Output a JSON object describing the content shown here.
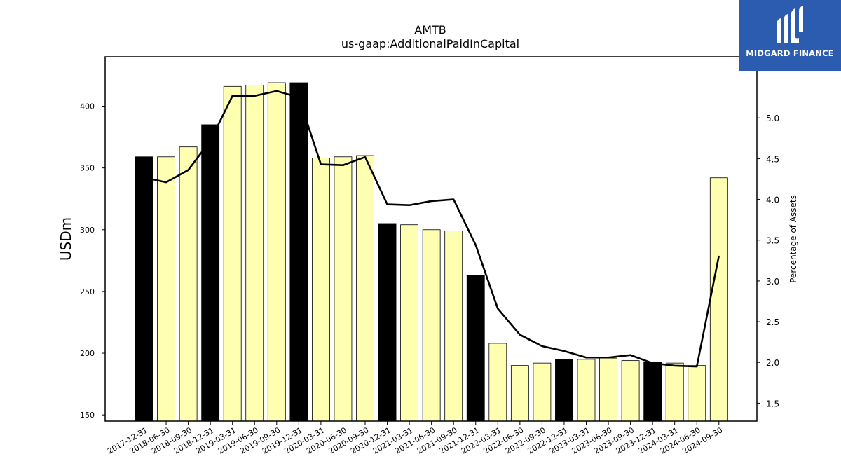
{
  "brand": {
    "name": "MIDGARD FINANCE",
    "logo_icon": "mf-logo-icon",
    "color": "#2b5caf"
  },
  "chart_data": {
    "type": "bar",
    "title": "AMTB",
    "subtitle": "us-gaap:AdditionalPaidInCapital",
    "ylabel": "USDm",
    "y2label": "Percentage of Assets",
    "ylim": [
      145,
      440
    ],
    "y2lim": [
      1.28,
      5.75
    ],
    "yticks": [
      150,
      200,
      250,
      300,
      350,
      400
    ],
    "y2ticks": [
      "1.5",
      "2.0",
      "2.5",
      "3.0",
      "3.5",
      "4.0",
      "4.5",
      "5.0"
    ],
    "categories": [
      "2017-12-31",
      "2018-06-30",
      "2018-09-30",
      "2018-12-31",
      "2019-03-31",
      "2019-06-30",
      "2019-09-30",
      "2019-12-31",
      "2020-03-31",
      "2020-06-30",
      "2020-09-30",
      "2020-12-31",
      "2021-03-31",
      "2021-06-30",
      "2021-09-30",
      "2021-12-31",
      "2022-03-31",
      "2022-06-30",
      "2022-09-30",
      "2022-12-31",
      "2023-03-31",
      "2023-06-30",
      "2023-09-30",
      "2023-12-31",
      "2024-03-31",
      "2024-06-30",
      "2024-09-30"
    ],
    "series": [
      {
        "values": [
          359,
          359,
          367,
          385,
          416,
          417,
          419,
          419,
          358,
          359,
          360,
          305,
          304,
          300,
          299,
          263,
          208,
          190,
          192,
          195,
          195,
          196,
          194,
          193,
          192,
          190,
          342
        ]
      },
      {
        "axis": "right",
        "values": [
          4.27,
          4.21,
          4.36,
          4.72,
          5.27,
          5.27,
          5.33,
          5.25,
          4.43,
          4.42,
          4.52,
          3.94,
          3.93,
          3.98,
          4.0,
          3.44,
          2.66,
          2.34,
          2.2,
          2.14,
          2.06,
          2.06,
          2.09,
          1.99,
          1.96,
          1.95,
          3.31
        ]
      }
    ],
    "bar_colors": {
      "year_end": "#000000",
      "quarter": "#ffffb2",
      "edge": "#000000"
    },
    "line_color": "#000000",
    "grid": false
  }
}
